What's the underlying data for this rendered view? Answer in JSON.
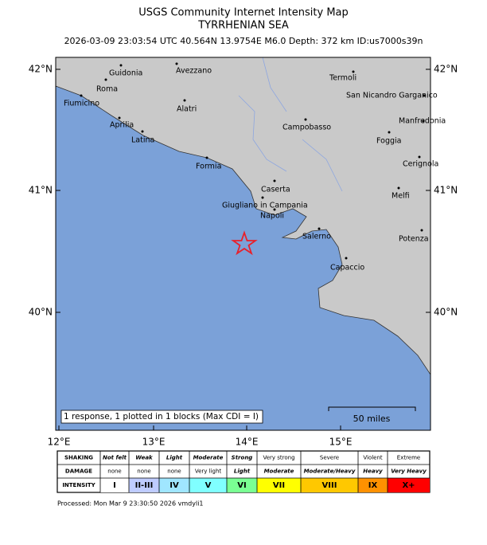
{
  "header": {
    "title": "USGS Community Internet Intensity Map",
    "subtitle": "TYRRHENIAN SEA",
    "info": "2026-03-09 23:03:54 UTC 40.564N 13.9754E M6.0 Depth: 372 km ID:us7000s39n"
  },
  "map": {
    "lat_labels": [
      "42°N",
      "41°N",
      "40°N"
    ],
    "lon_labels": [
      "12°E",
      "13°E",
      "14°E",
      "15°E"
    ],
    "cities": [
      "Guidonia",
      "Avezzano",
      "Termoli",
      "Roma",
      "Fiumicino",
      "San Nicandro Garganico",
      "Alatri",
      "Aprilia",
      "Campobasso",
      "Manfredonia",
      "Latina",
      "Foggia",
      "Formia",
      "Cerignola",
      "Caserta",
      "Melfi",
      "Giugliano in Campania",
      "Napoli",
      "Salerno",
      "Potenza",
      "Capaccio"
    ],
    "info_box": "1 response, 1 plotted in 1 blocks (Max CDI = I)",
    "scale_label": "50 miles"
  },
  "legend": {
    "row_labels": [
      "SHAKING",
      "DAMAGE",
      "INTENSITY"
    ],
    "shaking": [
      "Not felt",
      "Weak",
      "Light",
      "Moderate",
      "Strong",
      "Very strong",
      "Severe",
      "Violent",
      "Extreme"
    ],
    "damage": [
      "none",
      "none",
      "none",
      "Very light",
      "Light",
      "Moderate",
      "Moderate/Heavy",
      "Heavy",
      "Very Heavy"
    ],
    "intensity": [
      "I",
      "II-III",
      "IV",
      "V",
      "VI",
      "VII",
      "VIII",
      "IX",
      "X+"
    ]
  },
  "footer": "Processed: Mon Mar  9 23:30:50 2026 vmdyli1"
}
